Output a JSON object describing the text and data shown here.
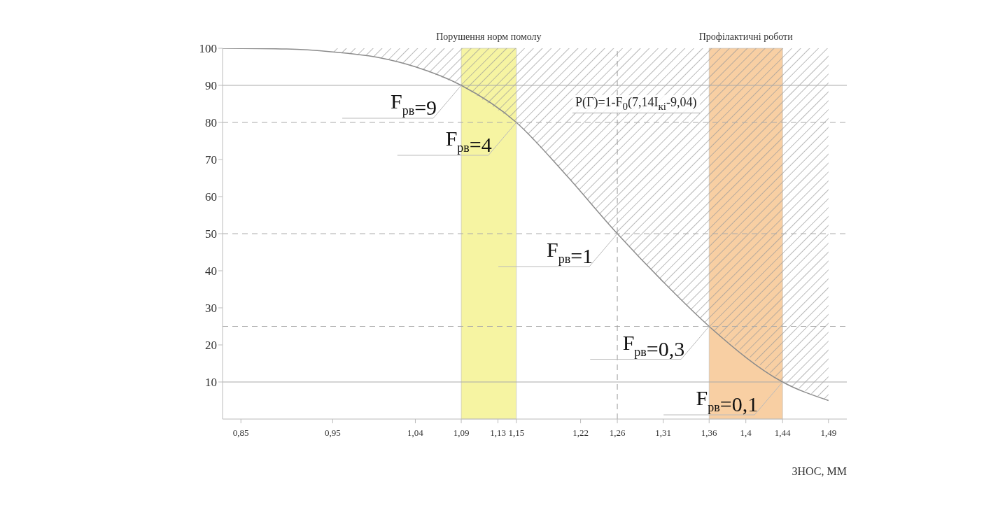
{
  "chart_data": {
    "type": "line",
    "xlabel": "ЗНОС, ММ",
    "x": [
      0.83,
      0.9,
      0.95,
      1.0,
      1.04,
      1.09,
      1.15,
      1.2,
      1.26,
      1.31,
      1.36,
      1.44,
      1.49
    ],
    "series": [
      {
        "color": "#8c8c8c",
        "values": [
          100,
          99.8,
          99,
          97.5,
          95,
          90,
          80,
          67,
          50,
          37,
          25,
          10,
          5
        ],
        "lower": [
          null,
          null,
          99,
          97.5,
          95,
          90,
          80,
          67,
          50,
          37,
          25,
          10,
          5
        ],
        "upper": [
          null,
          null,
          100,
          100,
          100,
          100,
          100,
          100,
          100,
          100,
          100,
          100,
          100
        ]
      }
    ],
    "xlim": [
      0.83,
      1.51
    ],
    "ylim": [
      0,
      100
    ],
    "xticks": [
      {
        "value": 0.85,
        "label": "0,85"
      },
      {
        "value": 0.95,
        "label": "0,95"
      },
      {
        "value": 1.04,
        "label": "1,04"
      },
      {
        "value": 1.09,
        "label": "1,09"
      },
      {
        "value": 1.13,
        "label": "1,13"
      },
      {
        "value": 1.15,
        "label": "1,15"
      },
      {
        "value": 1.22,
        "label": "1,22"
      },
      {
        "value": 1.26,
        "label": "1,26"
      },
      {
        "value": 1.31,
        "label": "1,31"
      },
      {
        "value": 1.36,
        "label": "1,36"
      },
      {
        "value": 1.4,
        "label": "1,4"
      },
      {
        "value": 1.44,
        "label": "1,44"
      },
      {
        "value": 1.49,
        "label": "1,49"
      }
    ],
    "yticks": [
      10,
      20,
      30,
      40,
      50,
      60,
      70,
      80,
      90,
      100
    ],
    "bands": [
      {
        "axis": "x",
        "from": 1.09,
        "to": 1.15,
        "label": "Порушення норм помолу",
        "color": "#f6f4a2"
      },
      {
        "axis": "x",
        "from": 1.36,
        "to": 1.44,
        "label": "Профілактичні роботи",
        "color": "#f8cfa3"
      }
    ],
    "ref_lines": [
      {
        "axis": "y",
        "value": 90,
        "line_style": "solid"
      },
      {
        "axis": "y",
        "value": 80,
        "line_style": "dashed"
      },
      {
        "axis": "y",
        "value": 50,
        "line_style": "dashed"
      },
      {
        "axis": "y",
        "value": 25,
        "line_style": "dashed"
      },
      {
        "axis": "y",
        "value": 10,
        "line_style": "solid"
      },
      {
        "axis": "x",
        "value": 1.26,
        "line_style": "dashed"
      }
    ],
    "annotations": [
      {
        "text": "F$_{рв}$=9",
        "x": 1.09,
        "y": 90
      },
      {
        "text": "F$_{рв}$=4",
        "x": 1.15,
        "y": 80
      },
      {
        "text": "F$_{рв}$=1",
        "x": 1.26,
        "y": 50
      },
      {
        "text": "F$_{рв}$=0,3",
        "x": 1.36,
        "y": 25
      },
      {
        "text": "F$_{рв}$=0,1",
        "x": 1.44,
        "y": 10
      },
      "P(Г)=1-F$_{0}$(7,14I$_{кі}$-9,04)"
    ],
    "legend": false,
    "grid": false,
    "marker": "none",
    "line_style": "solid"
  }
}
